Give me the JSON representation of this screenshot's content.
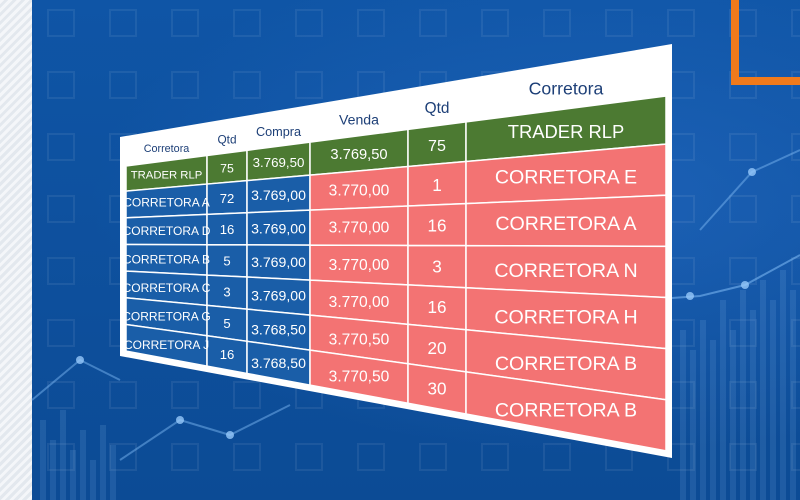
{
  "colors": {
    "background": "#0e4f9c",
    "buy_side": "#1a5ea8",
    "sell_side": "#f37373",
    "header_row": "#4c7a32",
    "accent_orange": "#f07a1c"
  },
  "buy_table": {
    "headers": [
      "Corretora",
      "Qtd",
      "Compra"
    ],
    "top_row": [
      "TRADER RLP",
      "75",
      "3.769,50"
    ],
    "rows": [
      [
        "CORRETORA A",
        "72",
        "3.769,00"
      ],
      [
        "CORRETORA D",
        "16",
        "3.769,00"
      ],
      [
        "CORRETORA B",
        "5",
        "3.769,00"
      ],
      [
        "CORRETORA C",
        "3",
        "3.769,00"
      ],
      [
        "CORRETORA G",
        "5",
        "3.768,50"
      ],
      [
        "CORRETORA J",
        "16",
        "3.768,50"
      ]
    ]
  },
  "sell_table": {
    "headers": [
      "Venda",
      "Qtd",
      "Corretora"
    ],
    "top_row": [
      "3.769,50",
      "75",
      "TRADER RLP"
    ],
    "rows": [
      [
        "3.770,00",
        "1",
        "CORRETORA E"
      ],
      [
        "3.770,00",
        "16",
        "CORRETORA A"
      ],
      [
        "3.770,00",
        "3",
        "CORRETORA N"
      ],
      [
        "3.770,00",
        "16",
        "CORRETORA H"
      ],
      [
        "3.770,50",
        "20",
        "CORRETORA B"
      ],
      [
        "3.770,50",
        "30",
        "CORRETORA B"
      ]
    ]
  }
}
